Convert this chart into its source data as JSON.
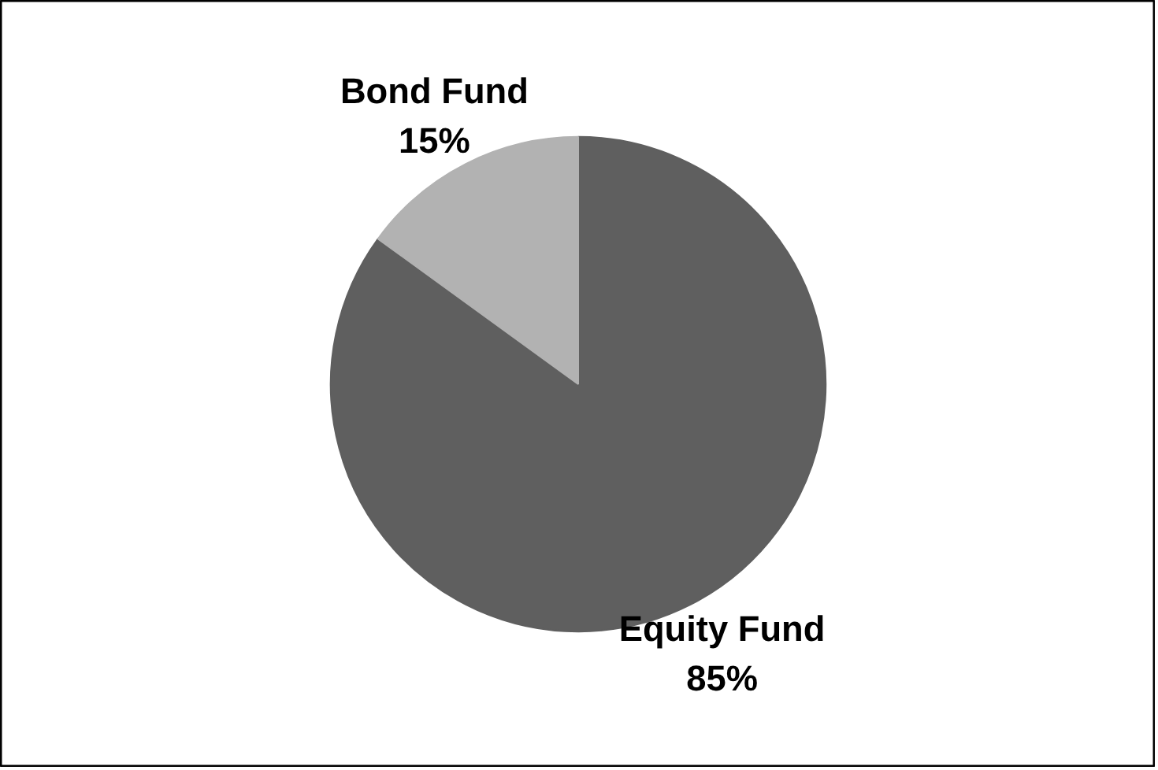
{
  "chart_data": {
    "type": "pie",
    "categories": [
      "Equity Fund",
      "Bond Fund"
    ],
    "values": [
      85,
      15
    ],
    "colors": [
      "#5f5f5f",
      "#b2b2b2"
    ],
    "value_labels": [
      "85%",
      "15%"
    ]
  }
}
